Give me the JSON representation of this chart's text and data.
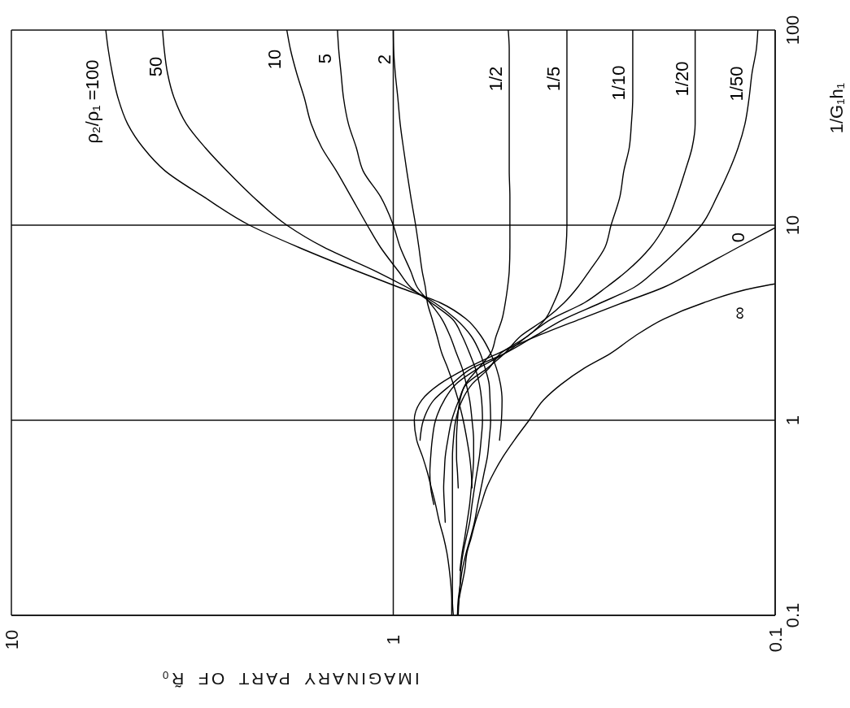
{
  "chart_data": {
    "type": "line",
    "xlabel": "IMAGINARY PART OF R̃₀",
    "ylabel": "1/G₁h₁",
    "log": "xy",
    "grid": true,
    "xlim": [
      10,
      0.1
    ],
    "xticks": [
      10,
      1,
      0.1
    ],
    "ylim": [
      0.1,
      100
    ],
    "yticks": [
      0.1,
      1,
      10,
      100
    ],
    "series": [
      {
        "name": "ρ₂/ρ₁ =100",
        "color": "#000000",
        "x": [
          0.527,
          0.521,
          0.519,
          0.524,
          0.537,
          0.556,
          0.589,
          0.644,
          0.753,
          0.966,
          1.24,
          1.77,
          2.38,
          3.14,
          3.96,
          4.52,
          4.96,
          5.26,
          5.44,
          5.58,
          5.66
        ],
        "values": [
          0.79,
          1,
          1.27,
          1.53,
          1.85,
          2.2,
          2.7,
          3.3,
          4,
          4.8,
          5.8,
          7.7,
          10,
          14,
          19,
          25,
          33,
          45,
          60,
          80,
          100
        ]
      },
      {
        "name": "50",
        "color": "#000000",
        "x": [
          0.679,
          0.676,
          0.669,
          0.66,
          0.644,
          0.628,
          0.613,
          0.601,
          0.589,
          0.578,
          0.567,
          0.561,
          0.556,
          0.558,
          0.561,
          0.575,
          0.592,
          0.625,
          0.686,
          0.779,
          0.92,
          1.11,
          1.52,
          1.9,
          2.33,
          2.73,
          3.11,
          3.48,
          3.75,
          3.9,
          3.98,
          4.02
        ],
        "values": [
          0.1,
          0.12,
          0.14,
          0.17,
          0.21,
          0.25,
          0.3,
          0.37,
          0.45,
          0.54,
          0.65,
          0.79,
          1,
          1.27,
          1.53,
          1.85,
          2.2,
          2.7,
          3.3,
          4,
          4.8,
          5.8,
          7.7,
          10,
          14,
          19,
          25,
          33,
          45,
          60,
          80,
          100
        ]
      },
      {
        "name": "10",
        "color": "#000000",
        "x": [
          0.676,
          0.673,
          0.669,
          0.666,
          0.656,
          0.644,
          0.631,
          0.622,
          0.613,
          0.604,
          0.595,
          0.589,
          0.584,
          0.587,
          0.595,
          0.61,
          0.631,
          0.66,
          0.7,
          0.795,
          0.9,
          0.969,
          1.08,
          1.17,
          1.29,
          1.41,
          1.54,
          1.64,
          1.71,
          1.79,
          1.86,
          1.9
        ],
        "values": [
          0.1,
          0.12,
          0.14,
          0.17,
          0.21,
          0.25,
          0.3,
          0.37,
          0.45,
          0.54,
          0.65,
          0.79,
          1,
          1.27,
          1.53,
          1.85,
          2.2,
          2.7,
          3.3,
          4,
          4.8,
          5.8,
          7.7,
          10,
          14,
          19,
          25,
          33,
          45,
          60,
          80,
          100
        ]
      },
      {
        "name": "5",
        "color": "#000000",
        "x": [
          0.669,
          0.66,
          0.65,
          0.641,
          0.631,
          0.625,
          0.619,
          0.616,
          0.616,
          0.622,
          0.631,
          0.644,
          0.66,
          0.683,
          0.71,
          0.746,
          0.802,
          0.865,
          0.9,
          0.959,
          1.0,
          1.08,
          1.2,
          1.25,
          1.31,
          1.35,
          1.37,
          1.39,
          1.4
        ],
        "values": [
          0.17,
          0.21,
          0.25,
          0.3,
          0.37,
          0.45,
          0.54,
          0.65,
          0.79,
          1,
          1.27,
          1.53,
          1.85,
          2.2,
          2.7,
          3.3,
          4,
          4.8,
          5.8,
          7.7,
          10,
          14,
          19,
          25,
          33,
          45,
          60,
          80,
          100
        ]
      },
      {
        "name": "2",
        "color": "#000000",
        "x": [
          0.622,
          0.625,
          0.631,
          0.641,
          0.656,
          0.676,
          0.696,
          0.72,
          0.746,
          0.768,
          0.791,
          0.814,
          0.824,
          0.84,
          0.857,
          0.874,
          0.9,
          0.922,
          0.941,
          0.959,
          0.973,
          0.988,
          0.998,
          1.0
        ],
        "values": [
          0.45,
          0.54,
          0.65,
          0.79,
          1,
          1.27,
          1.53,
          1.85,
          2.2,
          2.7,
          3.3,
          4,
          4.8,
          5.8,
          7.7,
          10,
          14,
          19,
          25,
          33,
          45,
          60,
          80,
          100
        ]
      },
      {
        "name": "1/2",
        "color": "#000000",
        "x": [
          0.676,
          0.679,
          0.683,
          0.683,
          0.679,
          0.669,
          0.647,
          0.598,
          0.556,
          0.538,
          0.519,
          0.509,
          0.502,
          0.497,
          0.495,
          0.495,
          0.495,
          0.497,
          0.497,
          0.497,
          0.497,
          0.497,
          0.497,
          0.5
        ],
        "values": [
          0.45,
          0.54,
          0.65,
          0.79,
          1,
          1.27,
          1.53,
          1.85,
          2.2,
          2.7,
          3.3,
          4,
          4.8,
          5.8,
          7.7,
          10,
          14,
          19,
          25,
          33,
          45,
          60,
          80,
          100
        ]
      },
      {
        "name": "1/5",
        "color": "#000000",
        "x": [
          0.696,
          0.7,
          0.7,
          0.7,
          0.7,
          0.7,
          0.7,
          0.7,
          0.7,
          0.7,
          0.7,
          0.696,
          0.686,
          0.66,
          0.622,
          0.561,
          0.524,
          0.445,
          0.4,
          0.38,
          0.366,
          0.359,
          0.353,
          0.351,
          0.351,
          0.351,
          0.351,
          0.351,
          0.351,
          0.351,
          0.351,
          0.351
        ],
        "values": [
          0.1,
          0.12,
          0.14,
          0.17,
          0.21,
          0.25,
          0.3,
          0.37,
          0.45,
          0.54,
          0.65,
          0.79,
          1,
          1.27,
          1.53,
          1.85,
          2.2,
          2.7,
          3.3,
          4,
          4.8,
          5.8,
          7.7,
          10,
          14,
          19,
          25,
          33,
          45,
          60,
          80,
          100
        ]
      },
      {
        "name": "1/10",
        "color": "#000000",
        "x": [
          0.731,
          0.735,
          0.738,
          0.735,
          0.731,
          0.72,
          0.703,
          0.673,
          0.644,
          0.567,
          0.511,
          0.464,
          0.4,
          0.357,
          0.329,
          0.307,
          0.279,
          0.269,
          0.255,
          0.249,
          0.241,
          0.238,
          0.236,
          0.236,
          0.236,
          0.236
        ],
        "values": [
          0.3,
          0.37,
          0.45,
          0.54,
          0.65,
          0.79,
          1,
          1.27,
          1.53,
          1.85,
          2.2,
          2.7,
          3.3,
          4,
          4.8,
          5.8,
          7.7,
          10,
          14,
          19,
          25,
          33,
          45,
          60,
          80,
          100
        ]
      },
      {
        "name": "1/20",
        "color": "#000000",
        "x": [
          0.783,
          0.798,
          0.802,
          0.798,
          0.791,
          0.775,
          0.735,
          0.686,
          0.598,
          0.511,
          0.445,
          0.386,
          0.316,
          0.277,
          0.245,
          0.212,
          0.194,
          0.181,
          0.172,
          0.165,
          0.162,
          0.162,
          0.162,
          0.162,
          0.162
        ],
        "values": [
          0.37,
          0.45,
          0.54,
          0.65,
          0.79,
          1,
          1.27,
          1.53,
          1.85,
          2.2,
          2.7,
          3.3,
          4,
          4.8,
          5.8,
          7.7,
          10,
          14,
          19,
          25,
          33,
          45,
          60,
          80,
          100
        ]
      },
      {
        "name": "1/50",
        "color": "#000000",
        "x": [
          0.851,
          0.834,
          0.783,
          0.703,
          0.622,
          0.511,
          0.426,
          0.357,
          0.286,
          0.234,
          0.207,
          0.177,
          0.156,
          0.142,
          0.132,
          0.125,
          0.12,
          0.117,
          0.115,
          0.112,
          0.111
        ],
        "values": [
          0.79,
          1,
          1.27,
          1.53,
          1.85,
          2.2,
          2.7,
          3.3,
          4,
          4.8,
          5.8,
          7.7,
          10,
          14,
          19,
          25,
          33,
          45,
          60,
          80,
          100
        ]
      },
      {
        "name": "0",
        "color": "#000000",
        "x": [
          0.703,
          0.703,
          0.706,
          0.713,
          0.724,
          0.738,
          0.757,
          0.775,
          0.795,
          0.814,
          0.838,
          0.868,
          0.881,
          0.842,
          0.757,
          0.641,
          0.532,
          0.42,
          0.324,
          0.251,
          0.196,
          0.163,
          0.125,
          0.1
        ],
        "values": [
          0.1,
          0.12,
          0.14,
          0.17,
          0.21,
          0.25,
          0.3,
          0.37,
          0.45,
          0.54,
          0.65,
          0.79,
          1,
          1.27,
          1.53,
          1.85,
          2.2,
          2.7,
          3.3,
          4,
          4.8,
          5.8,
          7.7,
          9.7
        ]
      },
      {
        "name": "∞",
        "color": "#000000",
        "x": [
          0.679,
          0.673,
          0.663,
          0.65,
          0.641,
          0.625,
          0.61,
          0.589,
          0.57,
          0.545,
          0.516,
          0.482,
          0.441,
          0.404,
          0.363,
          0.316,
          0.27,
          0.233,
          0.196,
          0.154,
          0.112,
          0.1
        ],
        "values": [
          0.1,
          0.12,
          0.14,
          0.17,
          0.21,
          0.25,
          0.3,
          0.37,
          0.45,
          0.54,
          0.65,
          0.79,
          1,
          1.27,
          1.53,
          1.85,
          2.2,
          2.7,
          3.3,
          4,
          4.8,
          5.0
        ]
      }
    ]
  }
}
